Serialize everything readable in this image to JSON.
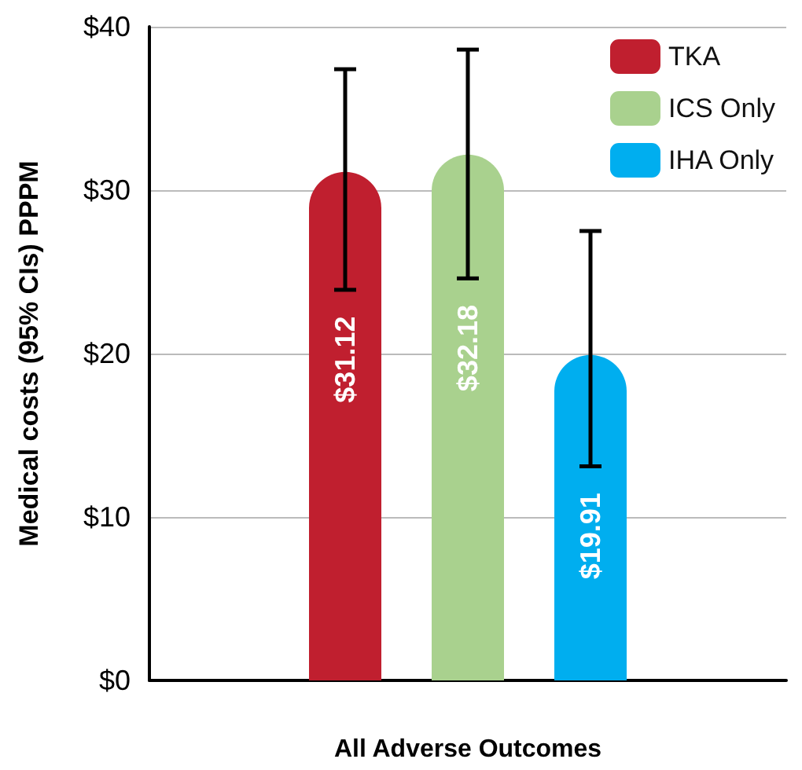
{
  "chart_data": {
    "type": "bar",
    "xlabel": "All Adverse Outcomes",
    "ylabel": "Medical costs (95% CIs) PPPM",
    "categories": [
      null
    ],
    "series": [
      {
        "name": "TKA",
        "color": "#c01f2f",
        "values": [
          31.12
        ],
        "errors": [
          [
            23.9,
            37.4
          ]
        ],
        "value_labels": [
          "$31.12"
        ]
      },
      {
        "name": "ICS Only",
        "color": "#a9d18e",
        "values": [
          32.18
        ],
        "errors": [
          [
            24.6,
            38.6
          ]
        ],
        "value_labels": [
          "$32.18"
        ]
      },
      {
        "name": "IHA Only",
        "color": "#00aeef",
        "values": [
          19.91
        ],
        "errors": [
          [
            13.1,
            27.5
          ]
        ],
        "value_labels": [
          "$19.91"
        ]
      }
    ],
    "ylim": [
      0,
      40
    ],
    "yticks": [
      {
        "value": 0,
        "label": "$0"
      },
      {
        "value": 10,
        "label": "$10"
      },
      {
        "value": 20,
        "label": "$20"
      },
      {
        "value": 30,
        "label": "$30"
      },
      {
        "value": 40,
        "label": "$40"
      }
    ],
    "grid": "y",
    "legend": "top right"
  }
}
